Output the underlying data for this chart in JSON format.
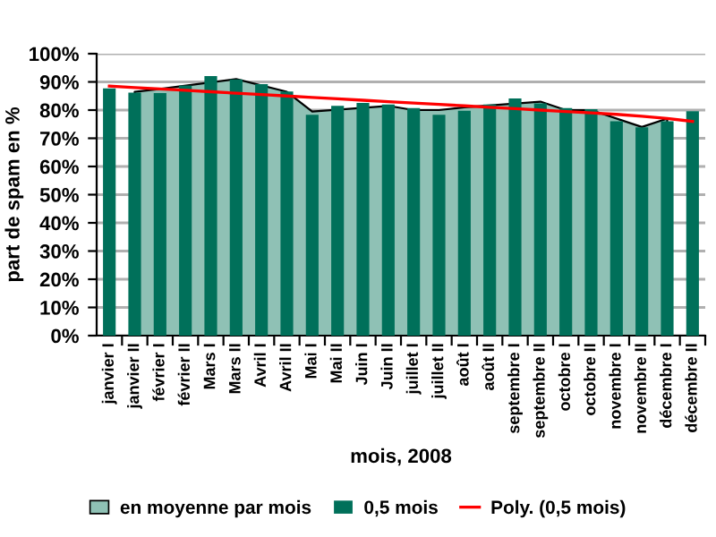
{
  "chart_data": {
    "type": "bar",
    "xlabel": "mois, 2008",
    "ylabel": "part de spam en %",
    "categories": [
      "janvier I",
      "janvier II",
      "février I",
      "février II",
      "Mars I",
      "Mars II",
      "Avril I",
      "Avril II",
      "Mai I",
      "Mai II",
      "Juin I",
      "Juin II",
      "juillet I",
      "juillet II",
      "août I",
      "août II",
      "septembre I",
      "septembre II",
      "octobre I",
      "octobre II",
      "novembre I",
      "novembre II",
      "décembre I",
      "décembre II"
    ],
    "series": [
      {
        "name": "en moyenne par mois",
        "type": "area",
        "color": "#8fc1b5",
        "values": [
          null,
          86.5,
          87.5,
          null,
          null,
          91,
          null,
          86.5,
          79.5,
          null,
          null,
          81.5,
          80,
          80,
          81,
          null,
          null,
          83,
          80,
          80,
          null,
          74,
          77,
          null
        ]
      },
      {
        "name": "0,5 mois",
        "color": "#00705a",
        "values": [
          87.7,
          86.2,
          86,
          88.7,
          92.1,
          90.9,
          89.2,
          86.6,
          78.3,
          81.5,
          82.5,
          82,
          80.7,
          78.3,
          79.8,
          82,
          84.1,
          82.4,
          80.7,
          80.3,
          76,
          73.9,
          76,
          79.6
        ]
      },
      {
        "name": "Poly. (0,5 mois)",
        "type": "line",
        "color": "#ff0000",
        "values": [
          88.5,
          88,
          87.5,
          87,
          86.5,
          86,
          85.5,
          85,
          84.5,
          84,
          83.5,
          83,
          82.5,
          82,
          81.5,
          81,
          80.5,
          80,
          79.5,
          79,
          78.5,
          77.8,
          77,
          76
        ]
      }
    ],
    "ylim": [
      0,
      100
    ],
    "yticks": [
      {
        "value": 0,
        "label": "0%"
      },
      {
        "value": 10,
        "label": "10%"
      },
      {
        "value": 20,
        "label": "20%"
      },
      {
        "value": 30,
        "label": "30%"
      },
      {
        "value": 40,
        "label": "40%"
      },
      {
        "value": 50,
        "label": "50%"
      },
      {
        "value": 60,
        "label": "60%"
      },
      {
        "value": 70,
        "label": "70%"
      },
      {
        "value": 80,
        "label": "80%"
      },
      {
        "value": 90,
        "label": "90%"
      },
      {
        "value": 100,
        "label": "100%"
      }
    ],
    "grid": "y",
    "legend": "bottom"
  }
}
